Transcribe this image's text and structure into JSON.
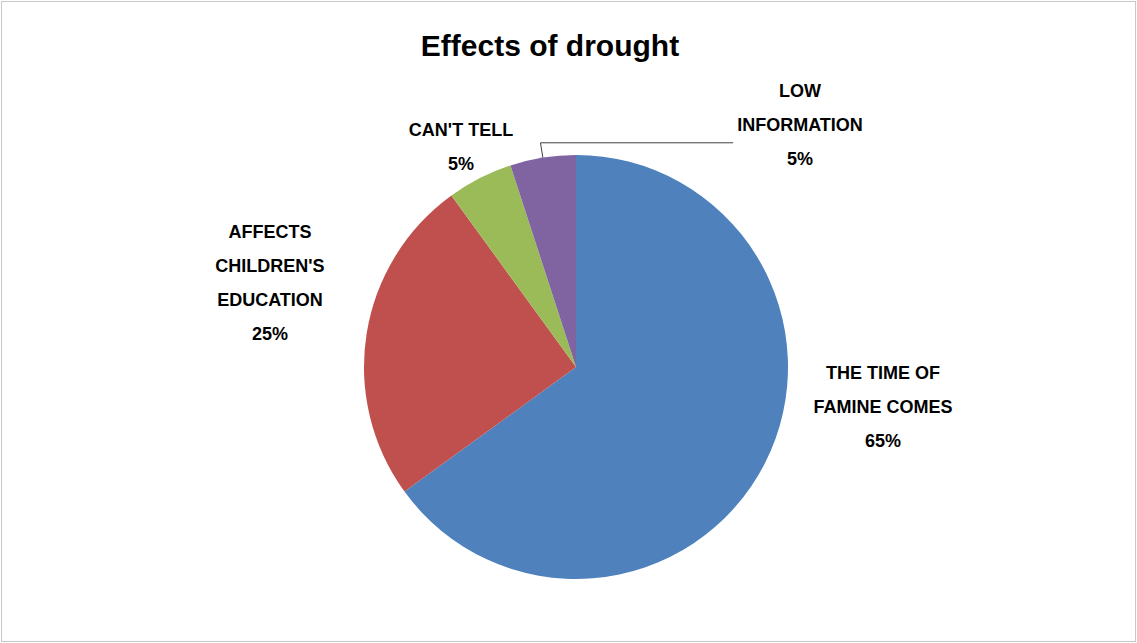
{
  "chart_data": {
    "type": "pie",
    "title": "Effects of drought",
    "categories": [
      "THE TIME OF FAMINE COMES",
      "AFFECTS CHILDREN'S EDUCATION",
      "CAN'T TELL",
      "LOW INFORMATION"
    ],
    "values": [
      65,
      25,
      5,
      5
    ],
    "value_labels": [
      "65%",
      "25%",
      "5%",
      "5%"
    ],
    "colors": [
      "#4f81bd",
      "#c0504d",
      "#9bbb59",
      "#8064a2"
    ],
    "data_labels": true
  }
}
